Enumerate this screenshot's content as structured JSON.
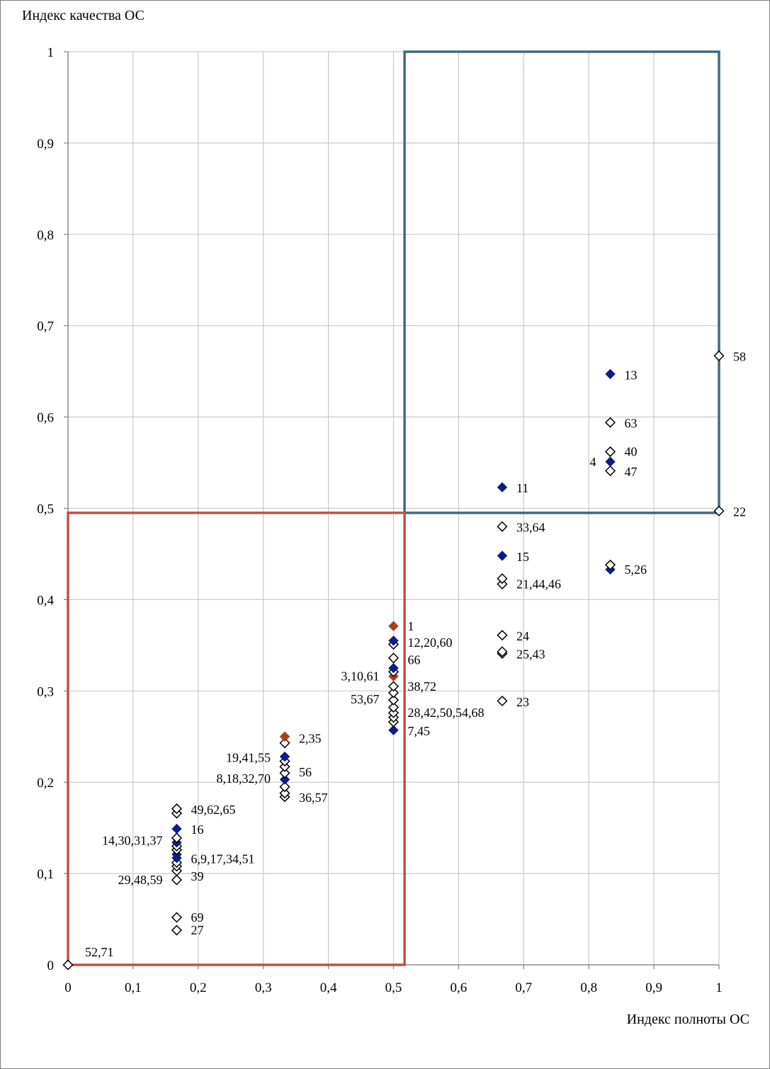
{
  "chart_data": {
    "type": "scatter",
    "title": "",
    "xlabel": "Индекс полноты ОС",
    "ylabel": "Индекс качества  ОС",
    "xlim": [
      0,
      1
    ],
    "ylim": [
      0,
      1
    ],
    "xticks": [
      "0",
      "0,1",
      "0,2",
      "0,3",
      "0,4",
      "0,5",
      "0,6",
      "0,7",
      "0,8",
      "0,9",
      "1"
    ],
    "yticks": [
      "0",
      "0,1",
      "0,2",
      "0,3",
      "0,4",
      "0,5",
      "0,6",
      "0,7",
      "0,8",
      "0,9",
      "1"
    ],
    "grid": true,
    "legend": "none",
    "colors": {
      "filled_blue": "#0d1d87",
      "filled_red": "#a8401a",
      "open_marker_stroke": "#000000",
      "blue_zone": "#44687f",
      "red_zone": "#c0504d",
      "label_red": "#a8401a",
      "label_blue": "#4f81bd"
    },
    "zones": [
      {
        "name": "high",
        "x": [
          0.517,
          1.0
        ],
        "y": [
          0.495,
          1.0
        ],
        "color": "#44687f"
      },
      {
        "name": "low",
        "x": [
          0.0,
          0.517
        ],
        "y": [
          0.0,
          0.495
        ],
        "color": "#c0504d"
      }
    ],
    "points": [
      {
        "x": 0.0,
        "y": 0.0,
        "style": "open"
      },
      {
        "x": 0.167,
        "y": 0.038,
        "style": "open"
      },
      {
        "x": 0.167,
        "y": 0.052,
        "style": "open"
      },
      {
        "x": 0.167,
        "y": 0.093,
        "style": "open"
      },
      {
        "x": 0.167,
        "y": 0.103,
        "style": "open"
      },
      {
        "x": 0.167,
        "y": 0.108,
        "style": "open"
      },
      {
        "x": 0.167,
        "y": 0.112,
        "style": "open"
      },
      {
        "x": 0.167,
        "y": 0.117,
        "style": "filled-blue"
      },
      {
        "x": 0.167,
        "y": 0.121,
        "style": "filled-blue"
      },
      {
        "x": 0.167,
        "y": 0.126,
        "style": "open"
      },
      {
        "x": 0.167,
        "y": 0.13,
        "style": "open"
      },
      {
        "x": 0.167,
        "y": 0.134,
        "style": "filled-blue"
      },
      {
        "x": 0.167,
        "y": 0.139,
        "style": "open"
      },
      {
        "x": 0.167,
        "y": 0.149,
        "style": "filled-blue"
      },
      {
        "x": 0.167,
        "y": 0.166,
        "style": "open"
      },
      {
        "x": 0.167,
        "y": 0.171,
        "style": "open"
      },
      {
        "x": 0.333,
        "y": 0.184,
        "style": "open"
      },
      {
        "x": 0.333,
        "y": 0.188,
        "style": "open"
      },
      {
        "x": 0.333,
        "y": 0.195,
        "style": "open"
      },
      {
        "x": 0.333,
        "y": 0.203,
        "style": "filled-blue"
      },
      {
        "x": 0.333,
        "y": 0.21,
        "style": "open"
      },
      {
        "x": 0.333,
        "y": 0.217,
        "style": "open"
      },
      {
        "x": 0.333,
        "y": 0.223,
        "style": "open"
      },
      {
        "x": 0.333,
        "y": 0.228,
        "style": "filled-blue"
      },
      {
        "x": 0.333,
        "y": 0.243,
        "style": "open"
      },
      {
        "x": 0.333,
        "y": 0.25,
        "style": "filled-red"
      },
      {
        "x": 0.5,
        "y": 0.257,
        "style": "filled-blue"
      },
      {
        "x": 0.5,
        "y": 0.266,
        "style": "open"
      },
      {
        "x": 0.5,
        "y": 0.271,
        "style": "open"
      },
      {
        "x": 0.5,
        "y": 0.276,
        "style": "open"
      },
      {
        "x": 0.5,
        "y": 0.282,
        "style": "open"
      },
      {
        "x": 0.5,
        "y": 0.29,
        "style": "open"
      },
      {
        "x": 0.5,
        "y": 0.298,
        "style": "open"
      },
      {
        "x": 0.5,
        "y": 0.305,
        "style": "open"
      },
      {
        "x": 0.5,
        "y": 0.316,
        "style": "filled-red"
      },
      {
        "x": 0.5,
        "y": 0.321,
        "style": "open"
      },
      {
        "x": 0.5,
        "y": 0.325,
        "style": "filled-blue"
      },
      {
        "x": 0.5,
        "y": 0.336,
        "style": "open"
      },
      {
        "x": 0.5,
        "y": 0.351,
        "style": "open"
      },
      {
        "x": 0.5,
        "y": 0.355,
        "style": "filled-blue"
      },
      {
        "x": 0.5,
        "y": 0.371,
        "style": "filled-red"
      },
      {
        "x": 0.667,
        "y": 0.289,
        "style": "open"
      },
      {
        "x": 0.667,
        "y": 0.341,
        "style": "open"
      },
      {
        "x": 0.667,
        "y": 0.343,
        "style": "open"
      },
      {
        "x": 0.667,
        "y": 0.361,
        "style": "open"
      },
      {
        "x": 0.667,
        "y": 0.417,
        "style": "open"
      },
      {
        "x": 0.667,
        "y": 0.423,
        "style": "open"
      },
      {
        "x": 0.667,
        "y": 0.448,
        "style": "filled-blue"
      },
      {
        "x": 0.667,
        "y": 0.48,
        "style": "open"
      },
      {
        "x": 0.667,
        "y": 0.523,
        "style": "filled-blue"
      },
      {
        "x": 0.833,
        "y": 0.433,
        "style": "filled-blue"
      },
      {
        "x": 0.833,
        "y": 0.438,
        "style": "open"
      },
      {
        "x": 0.833,
        "y": 0.541,
        "style": "open"
      },
      {
        "x": 0.833,
        "y": 0.551,
        "style": "filled-blue"
      },
      {
        "x": 0.833,
        "y": 0.562,
        "style": "open"
      },
      {
        "x": 0.833,
        "y": 0.594,
        "style": "open"
      },
      {
        "x": 0.833,
        "y": 0.647,
        "style": "filled-blue"
      },
      {
        "x": 1.0,
        "y": 0.497,
        "style": "open"
      },
      {
        "x": 1.0,
        "y": 0.667,
        "style": "open"
      }
    ],
    "annotations": [
      {
        "text": "52,71",
        "x": 0.0,
        "y": 0.0,
        "anchor": "right-above"
      },
      {
        "text": "27",
        "x": 0.167,
        "y": 0.038,
        "anchor": "right"
      },
      {
        "text": "69",
        "x": 0.167,
        "y": 0.052,
        "anchor": "right"
      },
      {
        "text": "29,48,59",
        "x": 0.167,
        "y": 0.093,
        "anchor": "left"
      },
      {
        "text": "39",
        "x": 0.167,
        "y": 0.097,
        "anchor": "right"
      },
      {
        "text": "6,9,17,34,51",
        "x": 0.167,
        "y": 0.116,
        "anchor": "right"
      },
      {
        "text": "14,30,31,37",
        "x": 0.167,
        "y": 0.136,
        "anchor": "left"
      },
      {
        "text": "16",
        "x": 0.167,
        "y": 0.148,
        "anchor": "right"
      },
      {
        "text": "49,62,65",
        "x": 0.167,
        "y": 0.17,
        "anchor": "right"
      },
      {
        "text": "36,57",
        "x": 0.333,
        "y": 0.183,
        "anchor": "right"
      },
      {
        "text": "8,18,32,70",
        "x": 0.333,
        "y": 0.204,
        "anchor": "left"
      },
      {
        "text": "56",
        "x": 0.333,
        "y": 0.211,
        "anchor": "right"
      },
      {
        "text": "19,41,55",
        "x": 0.333,
        "y": 0.227,
        "anchor": "left"
      },
      {
        "text": "2,35",
        "x": 0.333,
        "y": 0.248,
        "anchor": "right"
      },
      {
        "text": "7",
        "x": 0.5,
        "y": 0.256,
        "anchor": "right",
        "color": "#4f81bd"
      },
      {
        "text": ",45",
        "x": 0.5,
        "y": 0.256,
        "anchor": "right-after-7"
      },
      {
        "text": "28,42,50,54,68",
        "x": 0.5,
        "y": 0.276,
        "anchor": "right"
      },
      {
        "text": "53,67",
        "x": 0.5,
        "y": 0.291,
        "anchor": "left"
      },
      {
        "text": "38,72",
        "x": 0.5,
        "y": 0.305,
        "anchor": "right"
      },
      {
        "text": "3,10,61",
        "x": 0.5,
        "y": 0.316,
        "anchor": "left"
      },
      {
        "text": "66",
        "x": 0.5,
        "y": 0.334,
        "anchor": "right"
      },
      {
        "text": "12,20,60",
        "x": 0.5,
        "y": 0.353,
        "anchor": "right"
      },
      {
        "text": "1",
        "x": 0.5,
        "y": 0.371,
        "anchor": "right",
        "color": "#a8401a"
      },
      {
        "text": "23",
        "x": 0.667,
        "y": 0.288,
        "anchor": "right"
      },
      {
        "text": "25,43",
        "x": 0.667,
        "y": 0.34,
        "anchor": "right"
      },
      {
        "text": "24",
        "x": 0.667,
        "y": 0.36,
        "anchor": "right"
      },
      {
        "text": "21,44,46",
        "x": 0.667,
        "y": 0.417,
        "anchor": "right"
      },
      {
        "text": "15",
        "x": 0.667,
        "y": 0.447,
        "anchor": "right"
      },
      {
        "text": "33,64",
        "x": 0.667,
        "y": 0.479,
        "anchor": "right"
      },
      {
        "text": "11",
        "x": 0.667,
        "y": 0.522,
        "anchor": "right"
      },
      {
        "text": "5,26",
        "x": 0.833,
        "y": 0.433,
        "anchor": "right"
      },
      {
        "text": "47",
        "x": 0.833,
        "y": 0.54,
        "anchor": "right"
      },
      {
        "text": "4",
        "x": 0.833,
        "y": 0.551,
        "anchor": "left"
      },
      {
        "text": "40",
        "x": 0.833,
        "y": 0.562,
        "anchor": "right"
      },
      {
        "text": "63",
        "x": 0.833,
        "y": 0.593,
        "anchor": "right"
      },
      {
        "text": "13",
        "x": 0.833,
        "y": 0.646,
        "anchor": "right"
      },
      {
        "text": "22",
        "x": 1.0,
        "y": 0.496,
        "anchor": "right"
      },
      {
        "text": "58",
        "x": 1.0,
        "y": 0.666,
        "anchor": "right"
      }
    ]
  }
}
